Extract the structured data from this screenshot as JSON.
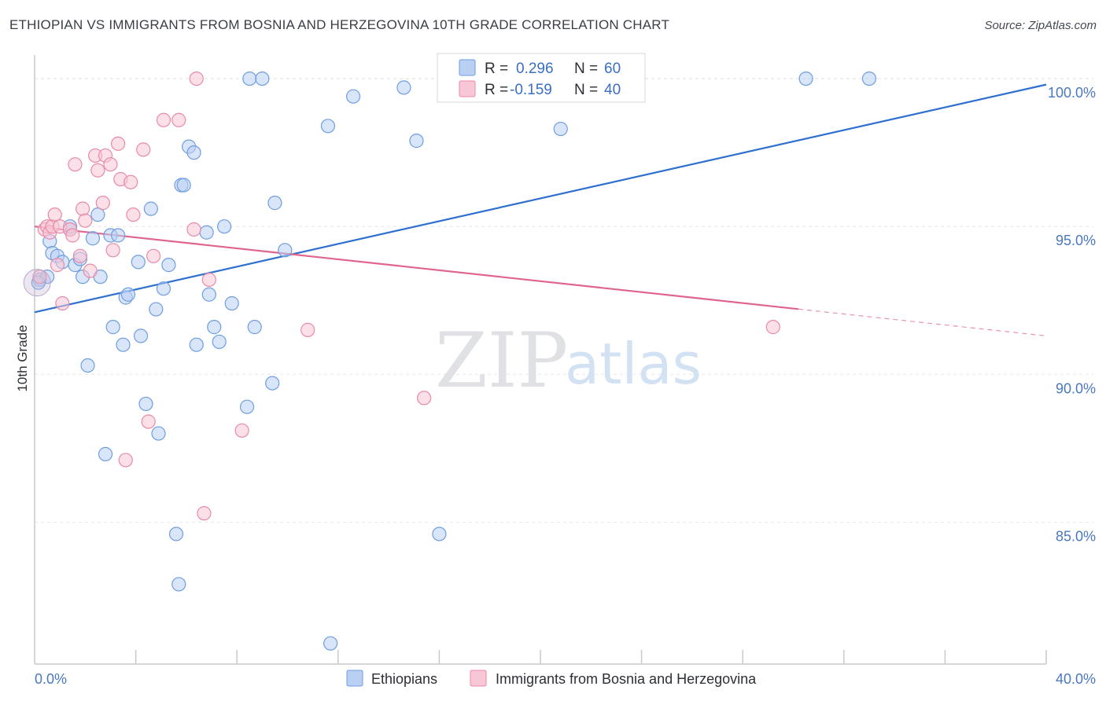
{
  "title": "ETHIOPIAN VS IMMIGRANTS FROM BOSNIA AND HERZEGOVINA 10TH GRADE CORRELATION CHART",
  "source": "Source: ZipAtlas.com",
  "watermark": {
    "zip": "ZIP",
    "atlas": "atlas"
  },
  "legend": {
    "r_label": "R =",
    "n_label": "N =",
    "items": [
      {
        "name": "Ethiopians",
        "r": "0.296",
        "n": "60",
        "color": "#6f9ee0",
        "fill": "#b9d0f2"
      },
      {
        "name": "Immigrants from Bosnia and Herzegovina",
        "r": "-0.159",
        "n": "40",
        "color": "#e88aa8",
        "fill": "#f8c7d5"
      }
    ]
  },
  "colors": {
    "blue_line": "#2e6fcf",
    "pink_line": "#e0648e",
    "grid": "#e3e5e8",
    "axis": "#c7c9cc",
    "tick_text": "#4a78c0"
  },
  "chart_data": {
    "type": "scatter",
    "title": "ETHIOPIAN VS IMMIGRANTS FROM BOSNIA AND HERZEGOVINA 10TH GRADE CORRELATION CHART",
    "xlabel": "",
    "ylabel": "10th Grade",
    "xlim": [
      0,
      40
    ],
    "ylim": [
      80.2,
      100.8
    ],
    "x_ticks": [
      {
        "value": 0,
        "label": "0.0%"
      },
      {
        "value": 40,
        "label": "40.0%"
      }
    ],
    "x_minor_ticks": [
      4,
      8,
      12,
      16,
      20,
      24,
      28,
      32,
      36,
      40
    ],
    "y_ticks": [
      {
        "value": 85,
        "label": "85.0%"
      },
      {
        "value": 90,
        "label": "90.0%"
      },
      {
        "value": 95,
        "label": "95.0%"
      },
      {
        "value": 100,
        "label": "100.0%"
      }
    ],
    "series": [
      {
        "name": "Ethiopians",
        "trend": {
          "x0": 0,
          "y0": 92.1,
          "x1": 40,
          "y1": 99.8,
          "solid_until": 40
        },
        "points": [
          [
            0.2,
            93.2
          ],
          [
            0.5,
            93.3
          ],
          [
            0.6,
            94.5
          ],
          [
            0.7,
            94.1
          ],
          [
            0.9,
            94.0
          ],
          [
            1.1,
            93.8
          ],
          [
            1.4,
            94.9
          ],
          [
            1.6,
            93.7
          ],
          [
            1.8,
            93.9
          ],
          [
            1.9,
            93.3
          ],
          [
            2.1,
            90.3
          ],
          [
            2.3,
            94.6
          ],
          [
            2.5,
            95.4
          ],
          [
            2.6,
            93.3
          ],
          [
            2.8,
            87.3
          ],
          [
            3.0,
            94.7
          ],
          [
            3.1,
            91.6
          ],
          [
            3.3,
            94.7
          ],
          [
            3.5,
            91.0
          ],
          [
            3.6,
            92.6
          ],
          [
            3.7,
            92.7
          ],
          [
            4.1,
            93.8
          ],
          [
            4.2,
            91.3
          ],
          [
            4.4,
            89.0
          ],
          [
            4.6,
            95.6
          ],
          [
            4.8,
            92.2
          ],
          [
            4.9,
            88.0
          ],
          [
            5.1,
            92.9
          ],
          [
            5.3,
            93.7
          ],
          [
            5.6,
            84.6
          ],
          [
            5.7,
            82.9
          ],
          [
            5.8,
            96.4
          ],
          [
            5.9,
            96.4
          ],
          [
            6.1,
            97.7
          ],
          [
            6.3,
            97.5
          ],
          [
            6.4,
            91.0
          ],
          [
            6.8,
            94.8
          ],
          [
            6.9,
            92.7
          ],
          [
            7.1,
            91.6
          ],
          [
            7.3,
            91.1
          ],
          [
            7.5,
            95.0
          ],
          [
            7.8,
            92.4
          ],
          [
            8.4,
            88.9
          ],
          [
            8.5,
            100.0
          ],
          [
            8.7,
            91.6
          ],
          [
            9.0,
            100.0
          ],
          [
            9.4,
            89.7
          ],
          [
            9.5,
            95.8
          ],
          [
            9.9,
            94.2
          ],
          [
            11.6,
            98.4
          ],
          [
            11.7,
            80.9
          ],
          [
            12.6,
            99.4
          ],
          [
            14.6,
            99.7
          ],
          [
            15.1,
            97.9
          ],
          [
            16.0,
            84.6
          ],
          [
            20.8,
            98.3
          ],
          [
            30.5,
            100.0
          ],
          [
            33.0,
            100.0
          ],
          [
            0.15,
            93.1
          ],
          [
            1.4,
            95.0
          ]
        ]
      },
      {
        "name": "Immigrants from Bosnia and Herzegovina",
        "trend": {
          "x0": 0,
          "y0": 95.0,
          "x1": 40,
          "y1": 91.3,
          "solid_until": 30.2
        },
        "points": [
          [
            0.2,
            93.3
          ],
          [
            0.4,
            94.9
          ],
          [
            0.5,
            95.0
          ],
          [
            0.6,
            94.8
          ],
          [
            0.7,
            95.0
          ],
          [
            0.8,
            95.4
          ],
          [
            0.9,
            93.7
          ],
          [
            1.0,
            95.0
          ],
          [
            1.1,
            92.4
          ],
          [
            1.4,
            94.9
          ],
          [
            1.5,
            94.7
          ],
          [
            1.6,
            97.1
          ],
          [
            1.8,
            94.0
          ],
          [
            1.9,
            95.6
          ],
          [
            2.0,
            95.2
          ],
          [
            2.2,
            93.5
          ],
          [
            2.4,
            97.4
          ],
          [
            2.5,
            96.9
          ],
          [
            2.7,
            95.8
          ],
          [
            2.8,
            97.4
          ],
          [
            3.0,
            97.1
          ],
          [
            3.1,
            94.2
          ],
          [
            3.3,
            97.8
          ],
          [
            3.4,
            96.6
          ],
          [
            3.6,
            87.1
          ],
          [
            3.8,
            96.5
          ],
          [
            3.9,
            95.4
          ],
          [
            4.3,
            97.6
          ],
          [
            4.5,
            88.4
          ],
          [
            4.7,
            94.0
          ],
          [
            5.1,
            98.6
          ],
          [
            5.7,
            98.6
          ],
          [
            6.3,
            94.9
          ],
          [
            6.4,
            100.0
          ],
          [
            6.7,
            85.3
          ],
          [
            6.9,
            93.2
          ],
          [
            8.2,
            88.1
          ],
          [
            10.8,
            91.5
          ],
          [
            15.4,
            89.2
          ],
          [
            29.2,
            91.6
          ]
        ]
      }
    ]
  }
}
